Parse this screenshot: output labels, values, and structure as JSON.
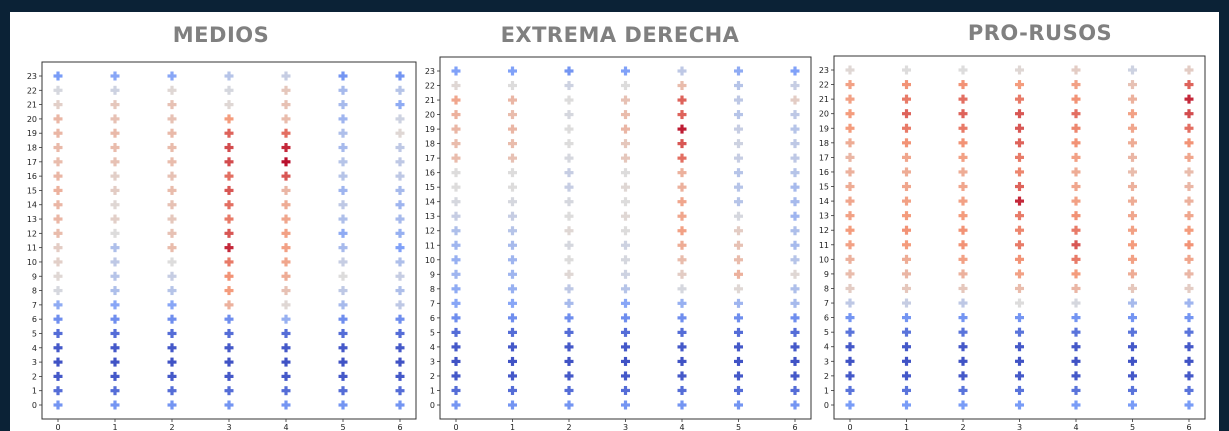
{
  "chart_data": [
    {
      "type": "scatter",
      "title": "MEDIOS",
      "x_ticks": [
        "0",
        "1",
        "2",
        "3",
        "4",
        "5",
        "6"
      ],
      "y_ticks": [
        "0",
        "1",
        "2",
        "3",
        "4",
        "5",
        "6",
        "7",
        "8",
        "9",
        "10",
        "11",
        "12",
        "13",
        "14",
        "15",
        "16",
        "17",
        "18",
        "19",
        "20",
        "21",
        "22",
        "23"
      ],
      "marker": "plus",
      "color_scale": "coolwarm",
      "note": "values are color intensities, 0 = blue, 1 = red",
      "values": [
        [
          0.22,
          0.1,
          0.04,
          0.02,
          0.04,
          0.1,
          0.2,
          0.3,
          0.48,
          0.52,
          0.55,
          0.56,
          0.62,
          0.64,
          0.64,
          0.66,
          0.64,
          0.62,
          0.63,
          0.64,
          0.64,
          0.55,
          0.48,
          0.24
        ],
        [
          0.22,
          0.1,
          0.04,
          0.02,
          0.04,
          0.1,
          0.2,
          0.28,
          0.38,
          0.4,
          0.42,
          0.38,
          0.5,
          0.55,
          0.52,
          0.56,
          0.55,
          0.6,
          0.62,
          0.63,
          0.6,
          0.58,
          0.46,
          0.28
        ],
        [
          0.22,
          0.1,
          0.04,
          0.02,
          0.04,
          0.1,
          0.2,
          0.28,
          0.4,
          0.44,
          0.5,
          0.62,
          0.6,
          0.58,
          0.6,
          0.62,
          0.6,
          0.62,
          0.62,
          0.63,
          0.6,
          0.6,
          0.52,
          0.28
        ],
        [
          0.22,
          0.1,
          0.04,
          0.02,
          0.04,
          0.1,
          0.2,
          0.66,
          0.74,
          0.76,
          0.8,
          0.94,
          0.86,
          0.8,
          0.82,
          0.86,
          0.82,
          0.88,
          0.88,
          0.84,
          0.74,
          0.52,
          0.48,
          0.4
        ],
        [
          0.22,
          0.1,
          0.04,
          0.02,
          0.04,
          0.1,
          0.32,
          0.52,
          0.6,
          0.68,
          0.7,
          0.72,
          0.72,
          0.7,
          0.68,
          0.64,
          0.86,
          0.98,
          0.94,
          0.82,
          0.62,
          0.6,
          0.58,
          0.44
        ],
        [
          0.22,
          0.1,
          0.04,
          0.02,
          0.04,
          0.1,
          0.2,
          0.36,
          0.42,
          0.5,
          0.44,
          0.36,
          0.3,
          0.38,
          0.42,
          0.34,
          0.4,
          0.4,
          0.36,
          0.38,
          0.34,
          0.36,
          0.36,
          0.22
        ],
        [
          0.22,
          0.1,
          0.04,
          0.02,
          0.04,
          0.1,
          0.2,
          0.42,
          0.38,
          0.44,
          0.38,
          0.26,
          0.32,
          0.36,
          0.34,
          0.36,
          0.42,
          0.42,
          0.42,
          0.52,
          0.46,
          0.3,
          0.4,
          0.22
        ]
      ]
    },
    {
      "type": "scatter",
      "title": "EXTREMA DERECHA",
      "x_ticks": [
        "0",
        "1",
        "2",
        "3",
        "4",
        "5",
        "6"
      ],
      "y_ticks": [
        "0",
        "1",
        "2",
        "3",
        "4",
        "5",
        "6",
        "7",
        "8",
        "9",
        "10",
        "11",
        "12",
        "13",
        "14",
        "15",
        "16",
        "17",
        "18",
        "19",
        "20",
        "21",
        "22",
        "23"
      ],
      "marker": "plus",
      "color_scale": "coolwarm",
      "note": "values are color intensities, 0 = blue, 1 = red",
      "values": [
        [
          0.22,
          0.1,
          0.04,
          0.02,
          0.04,
          0.1,
          0.2,
          0.28,
          0.3,
          0.34,
          0.32,
          0.34,
          0.38,
          0.44,
          0.48,
          0.5,
          0.5,
          0.62,
          0.62,
          0.64,
          0.66,
          0.7,
          0.52,
          0.26
        ],
        [
          0.22,
          0.1,
          0.04,
          0.02,
          0.04,
          0.1,
          0.2,
          0.28,
          0.32,
          0.34,
          0.34,
          0.36,
          0.4,
          0.44,
          0.48,
          0.5,
          0.5,
          0.6,
          0.62,
          0.64,
          0.62,
          0.64,
          0.5,
          0.26
        ],
        [
          0.22,
          0.1,
          0.04,
          0.02,
          0.04,
          0.1,
          0.2,
          0.36,
          0.42,
          0.52,
          0.5,
          0.48,
          0.52,
          0.5,
          0.48,
          0.44,
          0.44,
          0.48,
          0.5,
          0.5,
          0.48,
          0.5,
          0.46,
          0.22
        ],
        [
          0.22,
          0.1,
          0.04,
          0.02,
          0.04,
          0.1,
          0.2,
          0.28,
          0.4,
          0.46,
          0.48,
          0.46,
          0.5,
          0.52,
          0.5,
          0.52,
          0.5,
          0.58,
          0.58,
          0.64,
          0.62,
          0.6,
          0.5,
          0.26
        ],
        [
          0.22,
          0.1,
          0.04,
          0.02,
          0.04,
          0.1,
          0.2,
          0.32,
          0.48,
          0.56,
          0.62,
          0.68,
          0.72,
          0.7,
          0.7,
          0.66,
          0.66,
          0.82,
          0.86,
          0.96,
          0.84,
          0.84,
          0.62,
          0.42
        ],
        [
          0.22,
          0.1,
          0.04,
          0.02,
          0.04,
          0.1,
          0.2,
          0.34,
          0.52,
          0.66,
          0.62,
          0.6,
          0.56,
          0.48,
          0.4,
          0.4,
          0.4,
          0.44,
          0.46,
          0.44,
          0.4,
          0.42,
          0.4,
          0.3
        ],
        [
          0.22,
          0.1,
          0.04,
          0.02,
          0.04,
          0.1,
          0.2,
          0.36,
          0.38,
          0.52,
          0.4,
          0.36,
          0.38,
          0.34,
          0.36,
          0.36,
          0.4,
          0.42,
          0.42,
          0.4,
          0.42,
          0.56,
          0.44,
          0.26
        ]
      ]
    },
    {
      "type": "scatter",
      "title": "PRO-RUSOS",
      "x_ticks": [
        "0",
        "1",
        "2",
        "3",
        "4",
        "5",
        "6"
      ],
      "y_ticks": [
        "0",
        "1",
        "2",
        "3",
        "4",
        "5",
        "6",
        "7",
        "8",
        "9",
        "10",
        "11",
        "12",
        "13",
        "14",
        "15",
        "16",
        "17",
        "18",
        "19",
        "20",
        "21",
        "22",
        "23"
      ],
      "marker": "plus",
      "color_scale": "coolwarm",
      "note": "values are color intensities, 0 = blue, 1 = red",
      "values": [
        [
          0.24,
          0.12,
          0.04,
          0.02,
          0.04,
          0.12,
          0.22,
          0.42,
          0.56,
          0.62,
          0.66,
          0.72,
          0.74,
          0.72,
          0.7,
          0.68,
          0.66,
          0.64,
          0.68,
          0.74,
          0.74,
          0.72,
          0.72,
          0.52
        ],
        [
          0.24,
          0.12,
          0.04,
          0.02,
          0.04,
          0.12,
          0.22,
          0.44,
          0.58,
          0.64,
          0.68,
          0.74,
          0.76,
          0.74,
          0.72,
          0.7,
          0.68,
          0.7,
          0.76,
          0.8,
          0.84,
          0.8,
          0.76,
          0.5
        ],
        [
          0.24,
          0.12,
          0.04,
          0.02,
          0.04,
          0.12,
          0.22,
          0.42,
          0.58,
          0.66,
          0.72,
          0.76,
          0.76,
          0.74,
          0.72,
          0.7,
          0.68,
          0.72,
          0.76,
          0.8,
          0.84,
          0.82,
          0.76,
          0.5
        ],
        [
          0.24,
          0.12,
          0.04,
          0.02,
          0.04,
          0.12,
          0.22,
          0.5,
          0.62,
          0.72,
          0.76,
          0.8,
          0.78,
          0.8,
          0.94,
          0.84,
          0.78,
          0.8,
          0.84,
          0.86,
          0.86,
          0.8,
          0.74,
          0.52
        ],
        [
          0.24,
          0.12,
          0.04,
          0.02,
          0.04,
          0.12,
          0.22,
          0.48,
          0.64,
          0.74,
          0.8,
          0.86,
          0.8,
          0.76,
          0.72,
          0.7,
          0.68,
          0.72,
          0.76,
          0.78,
          0.82,
          0.76,
          0.72,
          0.56
        ],
        [
          0.24,
          0.12,
          0.04,
          0.02,
          0.04,
          0.12,
          0.22,
          0.36,
          0.58,
          0.68,
          0.72,
          0.74,
          0.72,
          0.7,
          0.68,
          0.66,
          0.62,
          0.64,
          0.68,
          0.7,
          0.72,
          0.66,
          0.6,
          0.46
        ],
        [
          0.24,
          0.12,
          0.04,
          0.02,
          0.04,
          0.12,
          0.22,
          0.34,
          0.56,
          0.64,
          0.7,
          0.76,
          0.74,
          0.7,
          0.66,
          0.64,
          0.62,
          0.7,
          0.76,
          0.82,
          0.88,
          0.94,
          0.84,
          0.56
        ]
      ]
    }
  ]
}
